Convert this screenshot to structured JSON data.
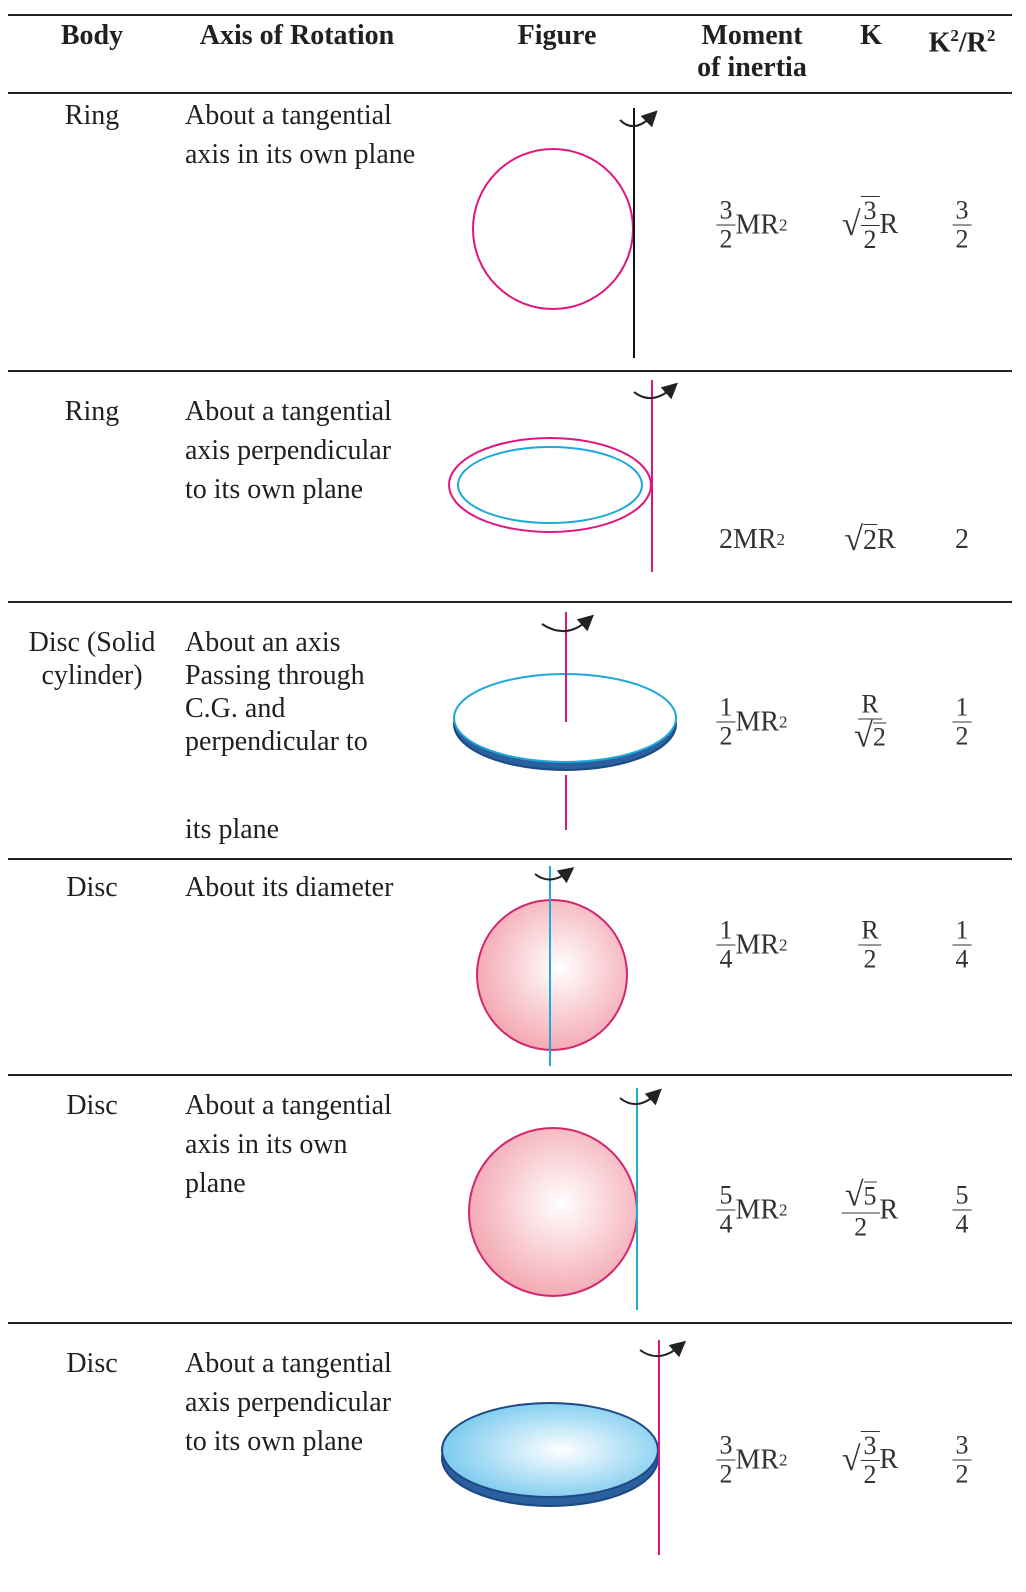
{
  "header": {
    "body": "Body",
    "axis": "Axis of Rotation",
    "figure": "Figure",
    "moment": [
      "Moment",
      "of inertia"
    ],
    "k": "K",
    "k2r2": {
      "base1": "K",
      "sup1": "2",
      "mid": "/R",
      "sup2": "2"
    }
  },
  "table": {
    "rows": [
      {
        "body": [
          "Ring"
        ],
        "axis": [
          "About a tangential",
          "axis in its own plane"
        ],
        "moment": {
          "num": "3",
          "den": "2",
          "base": "MR",
          "sup": "2"
        },
        "k": {
          "rad_num": "3",
          "rad_den": "2",
          "tail": "R"
        },
        "ratio": {
          "num": "3",
          "den": "2"
        }
      },
      {
        "body": [
          "Ring"
        ],
        "axis": [
          "About a tangential",
          "axis perpendicular",
          "to its own plane"
        ],
        "moment": {
          "base": "2MR",
          "sup": "2"
        },
        "k": {
          "rad": "2",
          "tail": "R"
        },
        "ratio": {
          "text": "2"
        }
      },
      {
        "body": [
          "Disc (Solid",
          "cylinder)"
        ],
        "axis": [
          "About an axis",
          "Passing through",
          "C.G. and",
          "perpendicular to",
          "its plane"
        ],
        "moment": {
          "num": "1",
          "den": "2",
          "base": "MR",
          "sup": "2"
        },
        "k": {
          "num": "R",
          "den_rad": "2"
        },
        "ratio": {
          "num": "1",
          "den": "2"
        }
      },
      {
        "body": [
          "Disc"
        ],
        "axis": [
          "About its diameter"
        ],
        "moment": {
          "num": "1",
          "den": "4",
          "base": "MR",
          "sup": "2"
        },
        "k": {
          "num": "R",
          "den": "2"
        },
        "ratio": {
          "num": "1",
          "den": "4"
        }
      },
      {
        "body": [
          "Disc"
        ],
        "axis": [
          "About a tangential",
          "axis in its own",
          "plane"
        ],
        "moment": {
          "num": "5",
          "den": "4",
          "base": "MR",
          "sup": "2"
        },
        "k": {
          "num_rad": "5",
          "den": "2",
          "tail": "R"
        },
        "ratio": {
          "num": "5",
          "den": "4"
        }
      },
      {
        "body": [
          "Disc"
        ],
        "axis": [
          "About a tangential",
          "axis perpendicular",
          "to its own plane"
        ],
        "moment": {
          "num": "3",
          "den": "2",
          "base": "MR",
          "sup": "2"
        },
        "k": {
          "rad_num": "3",
          "rad_den": "2",
          "tail": "R"
        },
        "ratio": {
          "num": "3",
          "den": "2"
        }
      }
    ]
  }
}
